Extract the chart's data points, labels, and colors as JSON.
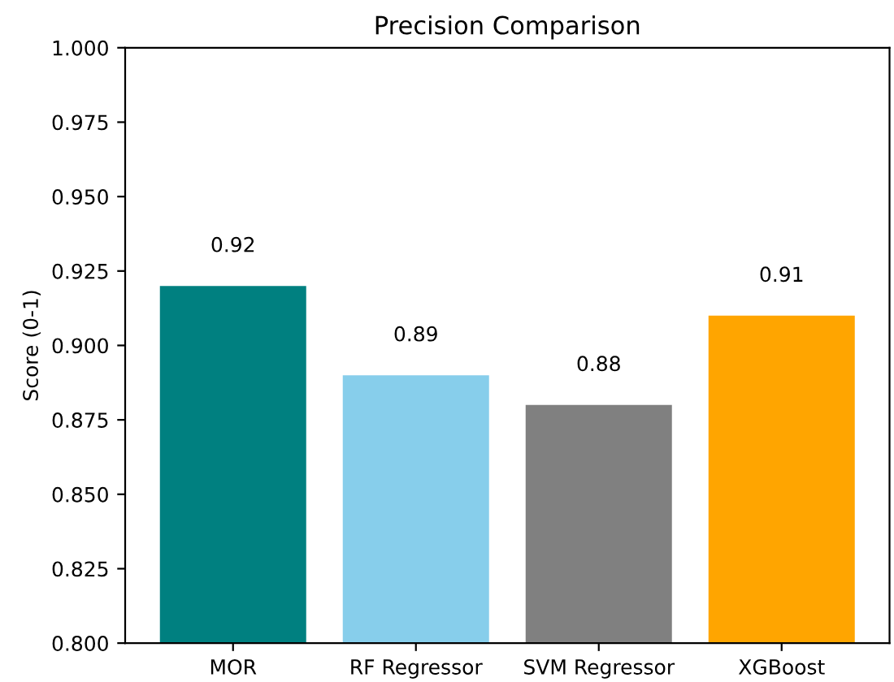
{
  "chart_data": {
    "type": "bar",
    "title": "Precision Comparison",
    "ylabel": "Score (0-1)",
    "categories": [
      "MOR",
      "RF Regressor",
      "SVM Regressor",
      "XGBoost"
    ],
    "values": [
      0.92,
      0.89,
      0.88,
      0.91
    ],
    "colors": [
      "#008080",
      "#87ceeb",
      "#808080",
      "#ffa500"
    ],
    "ylim": [
      0.8,
      1.0
    ],
    "yticks": [
      {
        "value": 0.8,
        "label": "0.800"
      },
      {
        "value": 0.825,
        "label": "0.825"
      },
      {
        "value": 0.85,
        "label": "0.850"
      },
      {
        "value": 0.875,
        "label": "0.875"
      },
      {
        "value": 0.9,
        "label": "0.900"
      },
      {
        "value": 0.925,
        "label": "0.925"
      },
      {
        "value": 0.95,
        "label": "0.950"
      },
      {
        "value": 0.975,
        "label": "0.975"
      },
      {
        "value": 1.0,
        "label": "1.000"
      }
    ],
    "data_labels": true,
    "grid": false,
    "legend": false
  }
}
